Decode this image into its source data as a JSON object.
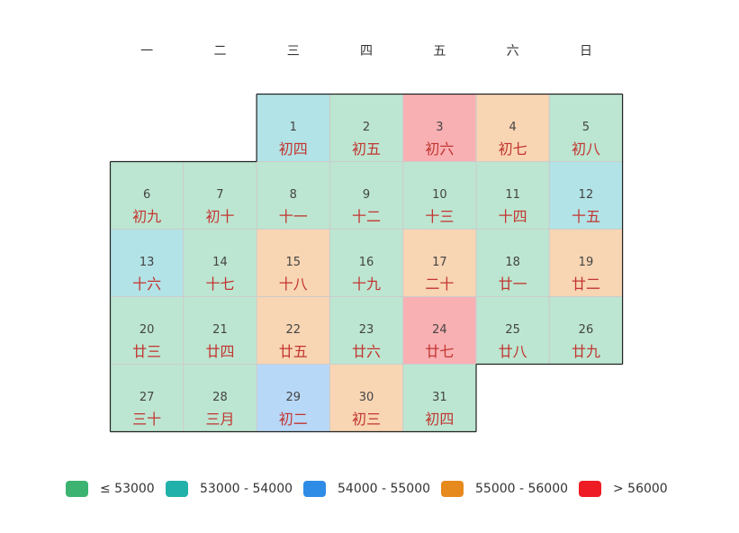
{
  "chart_data": {
    "type": "heatmap",
    "calendar": {
      "weekday_labels": [
        "一",
        "二",
        "三",
        "四",
        "五",
        "六",
        "日"
      ],
      "first_weekday_index": 2
    },
    "days": [
      {
        "day": "1",
        "lunar": "初四",
        "bin": 1
      },
      {
        "day": "2",
        "lunar": "初五",
        "bin": 0
      },
      {
        "day": "3",
        "lunar": "初六",
        "bin": 4
      },
      {
        "day": "4",
        "lunar": "初七",
        "bin": 3
      },
      {
        "day": "5",
        "lunar": "初八",
        "bin": 0
      },
      {
        "day": "6",
        "lunar": "初九",
        "bin": 0
      },
      {
        "day": "7",
        "lunar": "初十",
        "bin": 0
      },
      {
        "day": "8",
        "lunar": "十一",
        "bin": 0
      },
      {
        "day": "9",
        "lunar": "十二",
        "bin": 0
      },
      {
        "day": "10",
        "lunar": "十三",
        "bin": 0
      },
      {
        "day": "11",
        "lunar": "十四",
        "bin": 0
      },
      {
        "day": "12",
        "lunar": "十五",
        "bin": 1
      },
      {
        "day": "13",
        "lunar": "十六",
        "bin": 1
      },
      {
        "day": "14",
        "lunar": "十七",
        "bin": 0
      },
      {
        "day": "15",
        "lunar": "十八",
        "bin": 3
      },
      {
        "day": "16",
        "lunar": "十九",
        "bin": 0
      },
      {
        "day": "17",
        "lunar": "二十",
        "bin": 3
      },
      {
        "day": "18",
        "lunar": "廿一",
        "bin": 0
      },
      {
        "day": "19",
        "lunar": "廿二",
        "bin": 3
      },
      {
        "day": "20",
        "lunar": "廿三",
        "bin": 0
      },
      {
        "day": "21",
        "lunar": "廿四",
        "bin": 0
      },
      {
        "day": "22",
        "lunar": "廿五",
        "bin": 3
      },
      {
        "day": "23",
        "lunar": "廿六",
        "bin": 0
      },
      {
        "day": "24",
        "lunar": "廿七",
        "bin": 4
      },
      {
        "day": "25",
        "lunar": "廿八",
        "bin": 0
      },
      {
        "day": "26",
        "lunar": "廿九",
        "bin": 0
      },
      {
        "day": "27",
        "lunar": "三十",
        "bin": 0
      },
      {
        "day": "28",
        "lunar": "三月",
        "bin": 0
      },
      {
        "day": "29",
        "lunar": "初二",
        "bin": 2
      },
      {
        "day": "30",
        "lunar": "初三",
        "bin": 3
      },
      {
        "day": "31",
        "lunar": "初四",
        "bin": 0
      }
    ],
    "legend": {
      "placement": "bottom",
      "items": [
        {
          "label": "≤ 53000",
          "color": "#3cb371",
          "cell_color": "#bce6d1"
        },
        {
          "label": "53000 - 54000",
          "color": "#20b2aa",
          "cell_color": "#b2e3e6"
        },
        {
          "label": "54000 - 55000",
          "color": "#2e8be6",
          "cell_color": "#b8d8f7"
        },
        {
          "label": "55000 - 56000",
          "color": "#e68a1e",
          "cell_color": "#f8d5b3"
        },
        {
          "label": "> 56000",
          "color": "#ee1c25",
          "cell_color": "#f9b0b3"
        }
      ]
    }
  }
}
